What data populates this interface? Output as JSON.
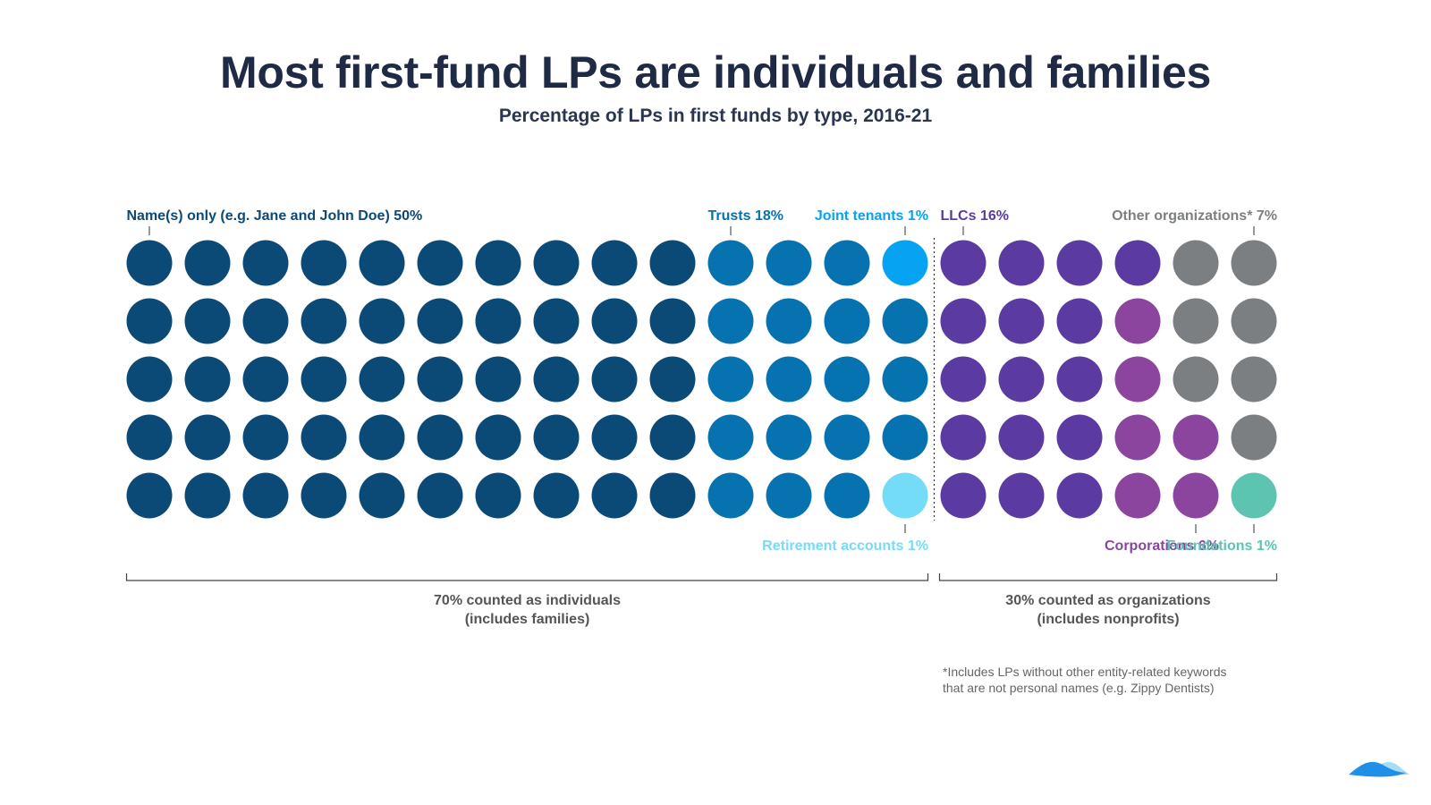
{
  "header": {
    "title": "Most first-fund LPs are individuals and families",
    "subtitle": "Percentage of LPs in first funds by type, 2016-21"
  },
  "chart_data": {
    "type": "waffle",
    "title": "Most first-fund LPs are individuals and families",
    "subtitle": "Percentage of LPs in first funds by type, 2016-21",
    "unit": "%",
    "rows": 5,
    "columns": 20,
    "series": [
      {
        "name": "Name(s) only (e.g. Jane and John Doe)",
        "label": "Name(s) only (e.g. Jane and John Doe) 50%",
        "value": 50,
        "color": "#0b4a77",
        "group": "individuals",
        "label_position": "top"
      },
      {
        "name": "Trusts",
        "label": "Trusts 18%",
        "value": 18,
        "color": "#0672b0",
        "group": "individuals",
        "label_position": "top"
      },
      {
        "name": "Joint tenants",
        "label": "Joint tenants 1%",
        "value": 1,
        "color": "#06a3f2",
        "group": "individuals",
        "label_position": "top"
      },
      {
        "name": "Retirement accounts",
        "label": "Retirement accounts 1%",
        "value": 1,
        "color": "#75dcf8",
        "group": "individuals",
        "label_position": "bottom"
      },
      {
        "name": "LLCs",
        "label": "LLCs 16%",
        "value": 16,
        "color": "#5b3ba1",
        "group": "organizations",
        "label_position": "top"
      },
      {
        "name": "Corporations",
        "label": "Corporations 6%",
        "value": 6,
        "color": "#8c459e",
        "group": "organizations",
        "label_position": "bottom"
      },
      {
        "name": "Other organizations*",
        "label": "Other organizations* 7%",
        "value": 7,
        "color": "#7b7f82",
        "group": "organizations",
        "label_position": "top"
      },
      {
        "name": "Foundations",
        "label": "Foundations 1%",
        "value": 1,
        "color": "#5ec4b2",
        "group": "organizations",
        "label_position": "bottom"
      }
    ],
    "grid": [
      [
        "Name(s) only (e.g. Jane and John Doe)",
        "Name(s) only (e.g. Jane and John Doe)",
        "Name(s) only (e.g. Jane and John Doe)",
        "Name(s) only (e.g. Jane and John Doe)",
        "Name(s) only (e.g. Jane and John Doe)",
        "Name(s) only (e.g. Jane and John Doe)",
        "Name(s) only (e.g. Jane and John Doe)",
        "Name(s) only (e.g. Jane and John Doe)",
        "Name(s) only (e.g. Jane and John Doe)",
        "Name(s) only (e.g. Jane and John Doe)",
        "Trusts",
        "Trusts",
        "Trusts",
        "Joint tenants",
        "LLCs",
        "LLCs",
        "LLCs",
        "LLCs",
        "Other organizations*",
        "Other organizations*"
      ],
      [
        "Name(s) only (e.g. Jane and John Doe)",
        "Name(s) only (e.g. Jane and John Doe)",
        "Name(s) only (e.g. Jane and John Doe)",
        "Name(s) only (e.g. Jane and John Doe)",
        "Name(s) only (e.g. Jane and John Doe)",
        "Name(s) only (e.g. Jane and John Doe)",
        "Name(s) only (e.g. Jane and John Doe)",
        "Name(s) only (e.g. Jane and John Doe)",
        "Name(s) only (e.g. Jane and John Doe)",
        "Name(s) only (e.g. Jane and John Doe)",
        "Trusts",
        "Trusts",
        "Trusts",
        "Trusts",
        "LLCs",
        "LLCs",
        "LLCs",
        "Corporations",
        "Other organizations*",
        "Other organizations*"
      ],
      [
        "Name(s) only (e.g. Jane and John Doe)",
        "Name(s) only (e.g. Jane and John Doe)",
        "Name(s) only (e.g. Jane and John Doe)",
        "Name(s) only (e.g. Jane and John Doe)",
        "Name(s) only (e.g. Jane and John Doe)",
        "Name(s) only (e.g. Jane and John Doe)",
        "Name(s) only (e.g. Jane and John Doe)",
        "Name(s) only (e.g. Jane and John Doe)",
        "Name(s) only (e.g. Jane and John Doe)",
        "Name(s) only (e.g. Jane and John Doe)",
        "Trusts",
        "Trusts",
        "Trusts",
        "Trusts",
        "LLCs",
        "LLCs",
        "LLCs",
        "Corporations",
        "Other organizations*",
        "Other organizations*"
      ],
      [
        "Name(s) only (e.g. Jane and John Doe)",
        "Name(s) only (e.g. Jane and John Doe)",
        "Name(s) only (e.g. Jane and John Doe)",
        "Name(s) only (e.g. Jane and John Doe)",
        "Name(s) only (e.g. Jane and John Doe)",
        "Name(s) only (e.g. Jane and John Doe)",
        "Name(s) only (e.g. Jane and John Doe)",
        "Name(s) only (e.g. Jane and John Doe)",
        "Name(s) only (e.g. Jane and John Doe)",
        "Name(s) only (e.g. Jane and John Doe)",
        "Trusts",
        "Trusts",
        "Trusts",
        "Trusts",
        "LLCs",
        "LLCs",
        "LLCs",
        "Corporations",
        "Corporations",
        "Other organizations*"
      ],
      [
        "Name(s) only (e.g. Jane and John Doe)",
        "Name(s) only (e.g. Jane and John Doe)",
        "Name(s) only (e.g. Jane and John Doe)",
        "Name(s) only (e.g. Jane and John Doe)",
        "Name(s) only (e.g. Jane and John Doe)",
        "Name(s) only (e.g. Jane and John Doe)",
        "Name(s) only (e.g. Jane and John Doe)",
        "Name(s) only (e.g. Jane and John Doe)",
        "Name(s) only (e.g. Jane and John Doe)",
        "Name(s) only (e.g. Jane and John Doe)",
        "Trusts",
        "Trusts",
        "Trusts",
        "Retirement accounts",
        "LLCs",
        "LLCs",
        "LLCs",
        "Corporations",
        "Corporations",
        "Foundations"
      ]
    ],
    "groups": [
      {
        "name": "individuals",
        "value": 70,
        "line1": "70% counted as individuals",
        "line2": "(includes families)"
      },
      {
        "name": "organizations",
        "value": 30,
        "line1": "30% counted as organizations",
        "line2": "(includes nonprofits)"
      }
    ],
    "annotations": [
      "*Includes LPs without other entity-related keywords",
      "that are not personal names (e.g. Zippy Dentists)"
    ]
  },
  "brand": {
    "icon": "wave-logo-icon",
    "color_dark": "#1f8fe8",
    "color_light": "#a7dcf2"
  }
}
